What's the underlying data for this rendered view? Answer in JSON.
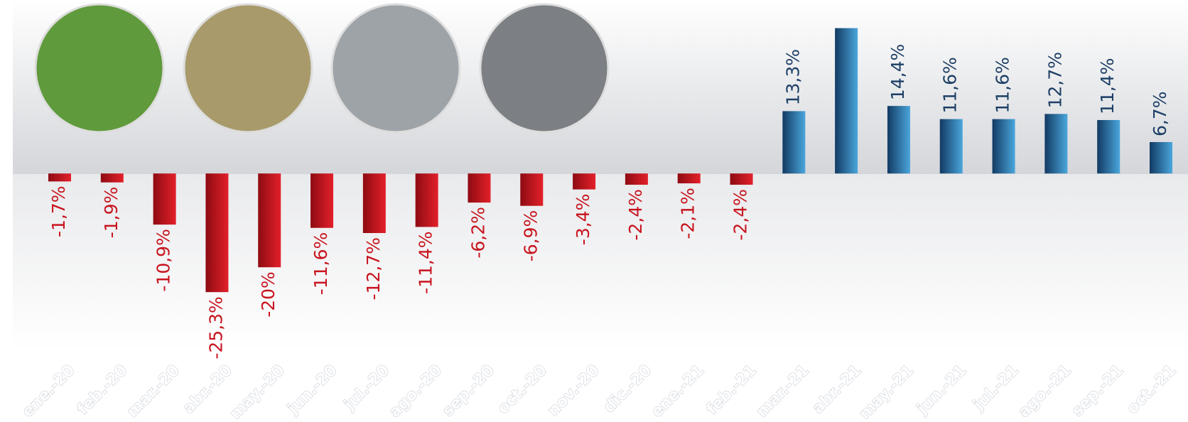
{
  "chart_data": {
    "type": "bar",
    "categories": [
      "ene.-20",
      "feb.-20",
      "mar.-20",
      "abr.-20",
      "may.-20",
      "jun.-20",
      "jul.-20",
      "ago.-20",
      "sep.-20",
      "oct.-20",
      "nov.-20",
      "dic.-20",
      "ene.-21",
      "feb.-21",
      "mar.-21",
      "abr.-21",
      "may.-21",
      "jun.-21",
      "jul.-21",
      "ago.-21",
      "sep.-21",
      "oct.-21"
    ],
    "values": [
      -1.7,
      -1.9,
      -10.9,
      -25.3,
      -20,
      -11.6,
      -12.7,
      -11.4,
      -6.2,
      -6.9,
      -3.4,
      -2.4,
      -2.1,
      -2.4,
      13.3,
      31,
      14.4,
      11.6,
      11.6,
      12.7,
      11.4,
      6.7
    ],
    "value_labels": [
      "-1,7%",
      "-1,9%",
      "-10,9%",
      "-25,3%",
      "-20%",
      "-11,6%",
      "-12,7%",
      "-11,4%",
      "-6,2%",
      "-6,9%",
      "-3,4%",
      "-2,4%",
      "-2,1%",
      "-2,4%",
      "13,3%",
      null,
      "14,4%",
      "11,6%",
      "11,6%",
      "12,7%",
      "11,4%",
      "6,7%"
    ],
    "negative_color": "#c8141e",
    "positive_color": "#2b7fbf",
    "label_negative_color": "#c8141e",
    "label_positive_color": "#1d3f66",
    "ylim": [
      -38,
      37
    ]
  }
}
